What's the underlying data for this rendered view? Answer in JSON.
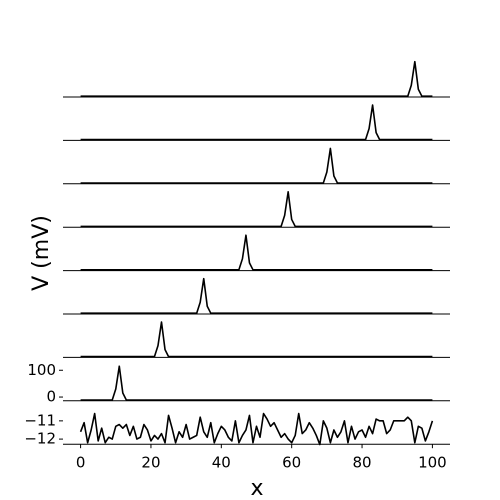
{
  "chart_data": {
    "type": "line",
    "xlabel": "x",
    "ylabel": "V (mV)",
    "color": "#000000",
    "xlim": [
      -5,
      105
    ],
    "xticks": [
      0,
      20,
      40,
      60,
      80,
      100
    ],
    "panels": [
      {
        "ylim": [
          -14,
          148
        ],
        "series": [
          {
            "x": [
              0,
              93,
              94,
              95,
              96,
              97,
              100
            ],
            "values": [
              -11,
              -11,
              30,
              118,
              15,
              -11,
              -11
            ]
          }
        ]
      },
      {
        "ylim": [
          -14,
          148
        ],
        "series": [
          {
            "x": [
              0,
              81,
              82,
              83,
              84,
              85,
              100
            ],
            "values": [
              -11,
              -11,
              30,
              118,
              15,
              -11,
              -11
            ]
          }
        ]
      },
      {
        "ylim": [
          -14,
          148
        ],
        "series": [
          {
            "x": [
              0,
              69,
              70,
              71,
              72,
              73,
              100
            ],
            "values": [
              -11,
              -11,
              30,
              118,
              15,
              -11,
              -11
            ]
          }
        ]
      },
      {
        "ylim": [
          -14,
          148
        ],
        "series": [
          {
            "x": [
              0,
              57,
              58,
              59,
              60,
              61,
              100
            ],
            "values": [
              -11,
              -11,
              30,
              118,
              15,
              -11,
              -11
            ]
          }
        ]
      },
      {
        "ylim": [
          -14,
          148
        ],
        "series": [
          {
            "x": [
              0,
              45,
              46,
              47,
              48,
              49,
              100
            ],
            "values": [
              -11,
              -11,
              30,
              118,
              15,
              -11,
              -11
            ]
          }
        ]
      },
      {
        "ylim": [
          -14,
          148
        ],
        "series": [
          {
            "x": [
              0,
              33,
              34,
              35,
              36,
              37,
              100
            ],
            "values": [
              -11,
              -11,
              30,
              118,
              15,
              -11,
              -11
            ]
          }
        ]
      },
      {
        "ylim": [
          -14,
          148
        ],
        "series": [
          {
            "x": [
              0,
              21,
              22,
              23,
              24,
              25,
              100
            ],
            "values": [
              -11,
              -11,
              30,
              118,
              15,
              -11,
              -11
            ]
          }
        ]
      },
      {
        "ylim": [
          -14,
          148
        ],
        "yticks": [
          0,
          100
        ],
        "series": [
          {
            "x": [
              0,
              9,
              10,
              11,
              12,
              13,
              100
            ],
            "values": [
              -11,
              -11,
              30,
              115,
              15,
              -11,
              -11
            ]
          }
        ]
      },
      {
        "ylim": [
          -12.28,
          -9.9
        ],
        "yticks": [
          {
            "value": -11,
            "label": "−11"
          },
          {
            "value": -12,
            "label": "−12"
          }
        ],
        "series": [
          {
            "x": [
              0,
              1,
              2,
              3,
              4,
              5,
              6,
              7,
              8,
              9,
              10,
              11,
              12,
              13,
              14,
              15,
              16,
              17,
              18,
              19,
              20,
              21,
              22,
              23,
              24,
              25,
              26,
              27,
              28,
              29,
              30,
              31,
              32,
              33,
              34,
              35,
              36,
              37,
              38,
              39,
              40,
              41,
              42,
              43,
              44,
              45,
              46,
              47,
              48,
              49,
              50,
              51,
              52,
              53,
              54,
              55,
              56,
              57,
              58,
              59,
              60,
              61,
              62,
              63,
              64,
              65,
              66,
              67,
              68,
              69,
              70,
              71,
              72,
              73,
              74,
              75,
              76,
              77,
              78,
              79,
              80,
              81,
              82,
              83,
              84,
              85,
              86,
              87,
              88,
              89,
              90,
              91,
              92,
              93,
              94,
              95,
              96,
              97,
              98,
              99,
              100
            ],
            "values": [
              -11.6,
              -11.1,
              -12.2,
              -11.5,
              -10.6,
              -12.1,
              -11.4,
              -12.2,
              -11.9,
              -12.0,
              -11.3,
              -11.2,
              -11.4,
              -11.2,
              -11.8,
              -11.3,
              -12.0,
              -11.9,
              -11.2,
              -11.5,
              -12.1,
              -11.8,
              -12.0,
              -11.7,
              -12.2,
              -10.7,
              -11.4,
              -12.2,
              -11.6,
              -11.9,
              -11.2,
              -12.0,
              -11.9,
              -11.8,
              -10.8,
              -11.6,
              -11.9,
              -11.1,
              -12.2,
              -11.7,
              -11.3,
              -11.5,
              -11.9,
              -12.1,
              -11.0,
              -12.2,
              -11.8,
              -11.5,
              -10.7,
              -12.2,
              -11.3,
              -11.9,
              -10.6,
              -10.9,
              -11.3,
              -11.1,
              -11.5,
              -11.9,
              -11.7,
              -12.0,
              -12.2,
              -11.8,
              -10.6,
              -11.7,
              -11.5,
              -11.1,
              -11.4,
              -11.8,
              -12.3,
              -11.0,
              -11.4,
              -12.2,
              -11.5,
              -11.9,
              -11.6,
              -11.0,
              -12.2,
              -11.3,
              -12.0,
              -11.6,
              -11.5,
              -11.9,
              -11.3,
              -11.7,
              -10.9,
              -11.0,
              -11.0,
              -11.7,
              -11.5,
              -11.0,
              -11.0,
              -11.0,
              -11.0,
              -10.8,
              -11.0,
              -12.2,
              -11.3,
              -11.4,
              -12.1,
              -11.6,
              -11.0
            ]
          }
        ]
      }
    ]
  }
}
